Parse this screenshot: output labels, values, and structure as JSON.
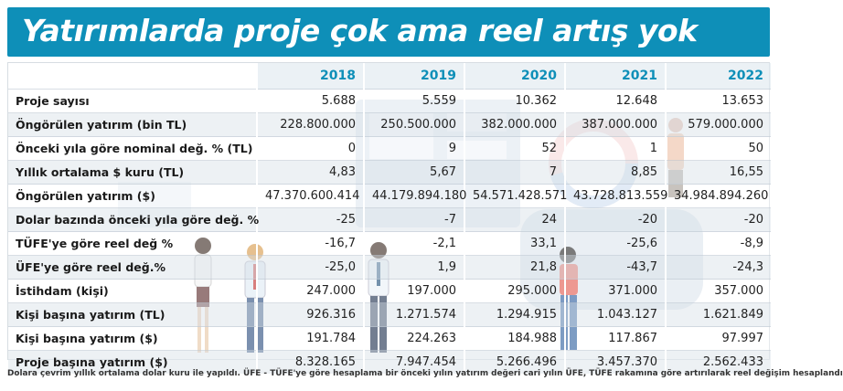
{
  "title": "Yatırımlarda proje çok ama reel artış yok",
  "years": [
    "2018",
    "2019",
    "2020",
    "2021",
    "2022"
  ],
  "rows": [
    {
      "label": "Proje sayısı",
      "values": [
        "5.688",
        "5.559",
        "10.362",
        "12.648",
        "13.653"
      ]
    },
    {
      "label": "Öngörülen yatırım (bin TL)",
      "values": [
        "228.800.000",
        "250.500.000",
        "382.000.000",
        "387.000.000",
        "579.000.000"
      ]
    },
    {
      "label": "Önceki yıla göre nominal değ. % (TL)",
      "values": [
        "0",
        "9",
        "52",
        "1",
        "50"
      ]
    },
    {
      "label": "Yıllık ortalama $ kuru (TL)",
      "values": [
        "4,83",
        "5,67",
        "7",
        "8,85",
        "16,55"
      ]
    },
    {
      "label": "Öngörülen yatırım ($)",
      "values": [
        "47.370.600.414",
        "44.179.894.180",
        "54.571.428.571",
        "43.728.813.559",
        "34.984.894.260"
      ]
    },
    {
      "label": "Dolar bazında önceki yıla göre değ. %",
      "values": [
        "-25",
        "-7",
        "24",
        "-20",
        "-20"
      ]
    },
    {
      "label": "TÜFE'ye göre reel değ %",
      "values": [
        "-16,7",
        "-2,1",
        "33,1",
        "-25,6",
        "-8,9"
      ]
    },
    {
      "label": "ÜFE'ye göre reel değ.%",
      "values": [
        "-25,0",
        "1,9",
        "21,8",
        "-43,7",
        "-24,3"
      ]
    },
    {
      "label": "İstihdam (kişi)",
      "values": [
        "247.000",
        "197.000",
        "295.000",
        "371.000",
        "357.000"
      ]
    },
    {
      "label": "Kişi başına yatırım (TL)",
      "values": [
        "926.316",
        "1.271.574",
        "1.294.915",
        "1.043.127",
        "1.621.849"
      ]
    },
    {
      "label": "Kişi başına yatırım ($)",
      "values": [
        "191.784",
        "224.263",
        "184.988",
        "117.867",
        "97.997"
      ]
    },
    {
      "label": "Proje başına yatırım ($)",
      "values": [
        "8.328.165",
        "7.947.454",
        "5.266.496",
        "3.457.370",
        "2.562.433"
      ]
    }
  ],
  "footnote": "Dolara çevrim yıllık ortalama dolar kuru ile yapıldı. ÜFE - TÜFE'ye göre hesaplama bir önceki yılın yatırım değeri cari yılın ÜFE, TÜFE rakamına göre artırılarak reel değişim hesaplandı",
  "colors": {
    "title_bg": "#0e8fb8",
    "header_text": "#0e8fb8",
    "stripe": "#e2e8ee"
  }
}
